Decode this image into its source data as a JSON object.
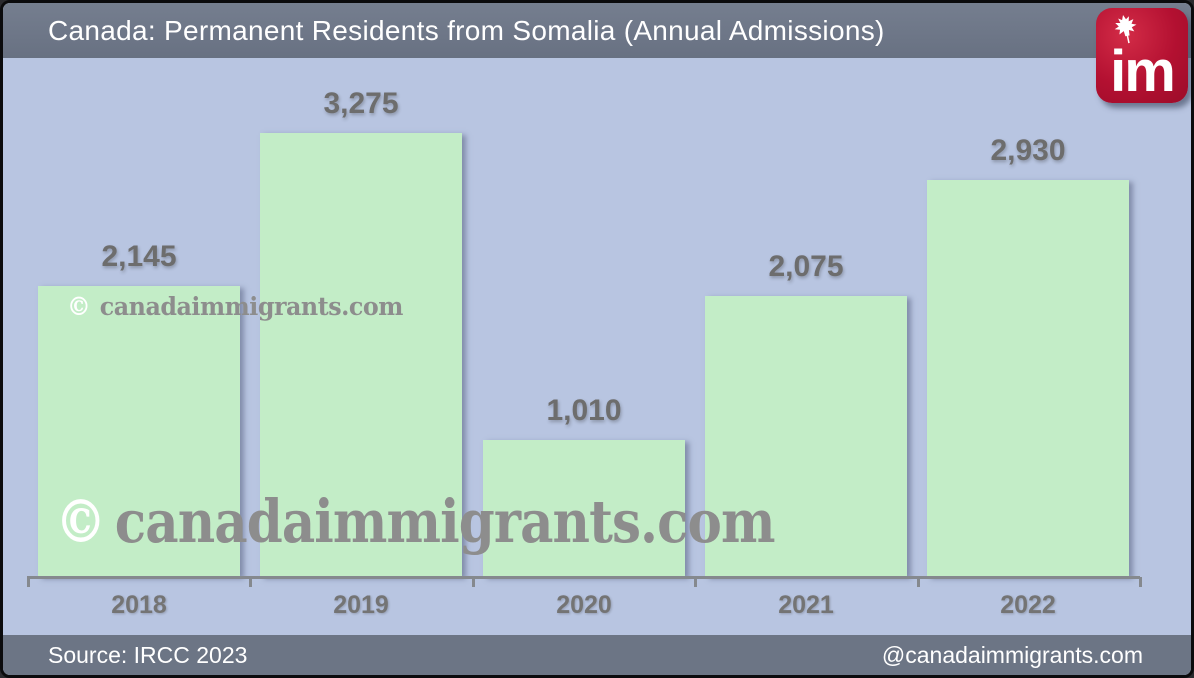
{
  "header": {
    "title": "Canada: Permanent Residents from Somalia (Annual Admissions)"
  },
  "logo": {
    "text": "im",
    "icon": "maple-leaf-icon"
  },
  "watermarks": {
    "copyright_symbol": "©",
    "site_text": "canadaimmigrants.com"
  },
  "footer": {
    "source": "Source: IRCC 2023",
    "handle": "@canadaimmigrants.com"
  },
  "colors": {
    "frame_border": "#0b0b0d",
    "header_bg": "#6c7585",
    "footer_bg": "#6c7585",
    "chart_bg": "#b8c5e1",
    "bar_fill": "#c3edc7",
    "axis": "#85898e",
    "value_label": "#6d6d6d",
    "year_label": "#747474",
    "title_text": "#ffffff",
    "watermark_gray": "#8d8d8d",
    "logo_red": "#b31031"
  },
  "chart_data": {
    "type": "bar",
    "title": "Canada: Permanent Residents from Somalia (Annual Admissions)",
    "categories": [
      "2018",
      "2019",
      "2020",
      "2021",
      "2022"
    ],
    "values": [
      2145,
      3275,
      1010,
      2075,
      2930
    ],
    "value_labels": [
      "2,145",
      "3,275",
      "1,010",
      "2,075",
      "2,930"
    ],
    "xlabel": "",
    "ylabel": "",
    "ylim": [
      0,
      3600
    ],
    "grid": false,
    "legend": null,
    "bar_color": "#c3edc7",
    "background_color": "#b8c5e1",
    "source": "IRCC 2023"
  }
}
